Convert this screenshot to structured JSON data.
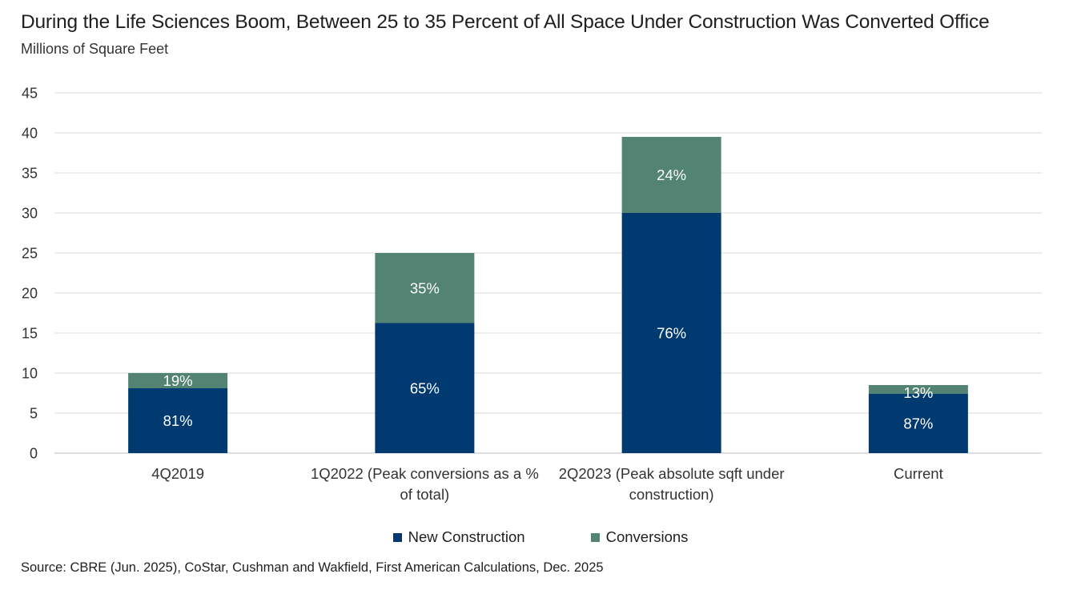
{
  "title": "During the Life Sciences Boom, Between 25 to 35 Percent of All Space Under Construction Was Converted Office",
  "subtitle": "Millions  of Square Feet",
  "source": "Source: CBRE (Jun. 2025), CoStar, Cushman and Wakfield, First American Calculations, Dec. 2025",
  "colors": {
    "new_construction": "#003a70",
    "conversions": "#538373",
    "grid": "#d9d9d9",
    "label_text": "#ffffff"
  },
  "chart_data": {
    "type": "bar",
    "stacked": true,
    "categories": [
      [
        "4Q2019"
      ],
      [
        "1Q2022 (Peak conversions as a %",
        "of total)"
      ],
      [
        "2Q2023 (Peak absolute sqft under",
        "construction)"
      ],
      [
        "Current"
      ]
    ],
    "series": [
      {
        "name": "New Construction",
        "color": "#003a70",
        "values": [
          8.1,
          16.25,
          30.0,
          7.4
        ],
        "data_labels": [
          "81%",
          "65%",
          "76%",
          "87%"
        ]
      },
      {
        "name": "Conversions",
        "color": "#538373",
        "values": [
          1.9,
          8.75,
          9.5,
          1.1
        ],
        "data_labels": [
          "19%",
          "35%",
          "24%",
          "13%"
        ]
      }
    ],
    "ylim": [
      0,
      45
    ],
    "yticks": [
      "0",
      "5",
      "10",
      "15",
      "20",
      "25",
      "30",
      "35",
      "40",
      "45"
    ],
    "xlabel": "",
    "ylabel": "",
    "grid": true,
    "legend_position": "bottom-center"
  }
}
